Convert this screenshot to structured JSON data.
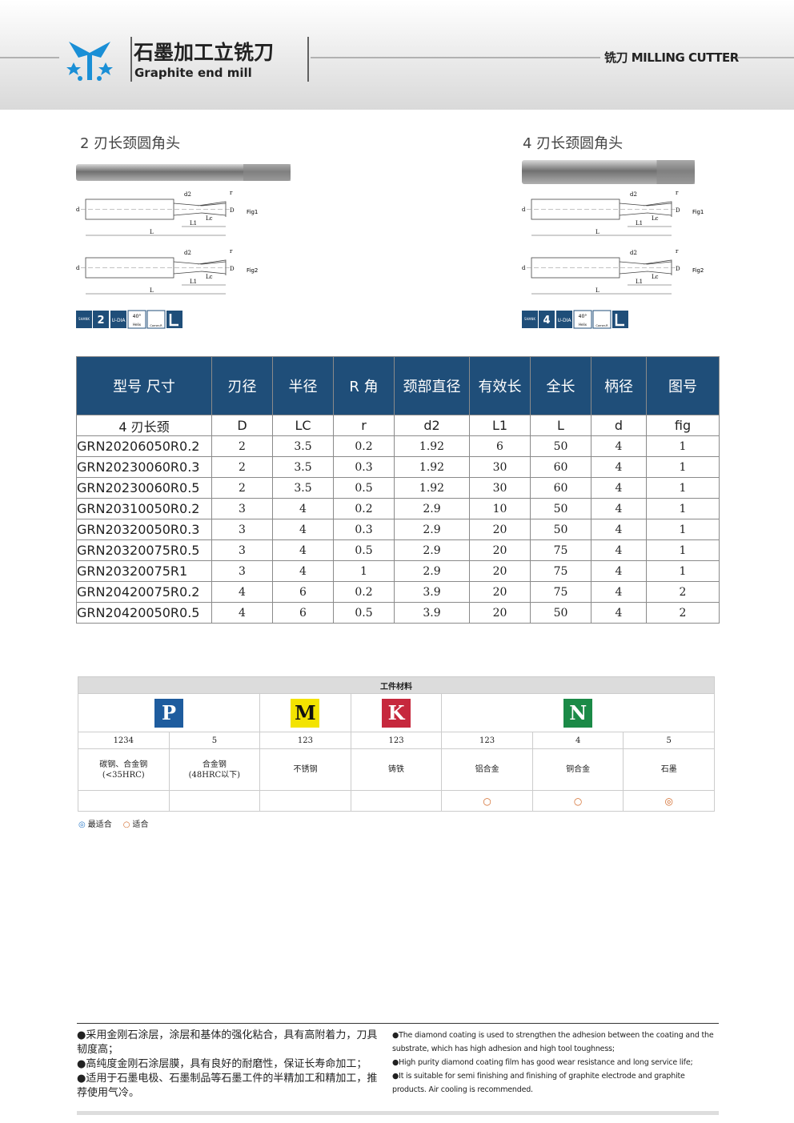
{
  "header": {
    "title_cn": "石墨加工立铣刀",
    "title_en": "Graphite end mill",
    "section": "铣刀 MILLING CUTTER"
  },
  "products": [
    {
      "title": "2 刃长颈圆角头",
      "flutes": "2",
      "figs": [
        "Fig1",
        "Fig2"
      ],
      "dims": [
        "d2",
        "d",
        "Lc",
        "L1",
        "L",
        "r",
        "D"
      ],
      "icons": [
        "SHANK",
        "U-DIA",
        "40°",
        "Helix",
        "Corner-R"
      ]
    },
    {
      "title": "4 刃长颈圆角头",
      "flutes": "4",
      "figs": [
        "Fig1",
        "Fig2"
      ],
      "dims": [
        "d2",
        "d",
        "Lc",
        "L1",
        "L",
        "r",
        "D"
      ],
      "icons": [
        "SHANK",
        "U-DIA",
        "40°",
        "Helix",
        "Corner-R"
      ]
    }
  ],
  "table": {
    "header": [
      "型号  尺寸",
      "刃径",
      "半径",
      "R 角",
      "颈部直径",
      "有效长",
      "全长",
      "柄径",
      "图号"
    ],
    "subheader": [
      "4 刃长颈",
      "D",
      "LC",
      "r",
      "d2",
      "L1",
      "L",
      "d",
      "fig"
    ],
    "rows": [
      [
        "GRN20206050R0.2",
        "2",
        "3.5",
        "0.2",
        "1.92",
        "6",
        "50",
        "4",
        "1"
      ],
      [
        "GRN20230060R0.3",
        "2",
        "3.5",
        "0.3",
        "1.92",
        "30",
        "60",
        "4",
        "1"
      ],
      [
        "GRN20230060R0.5",
        "2",
        "3.5",
        "0.5",
        "1.92",
        "30",
        "60",
        "4",
        "1"
      ],
      [
        "GRN20310050R0.2",
        "3",
        "4",
        "0.2",
        "2.9",
        "10",
        "50",
        "4",
        "1"
      ],
      [
        "GRN20320050R0.3",
        "3",
        "4",
        "0.3",
        "2.9",
        "20",
        "50",
        "4",
        "1"
      ],
      [
        "GRN20320075R0.5",
        "3",
        "4",
        "0.5",
        "2.9",
        "20",
        "75",
        "4",
        "1"
      ],
      [
        "GRN20320075R1",
        "3",
        "4",
        "1",
        "2.9",
        "20",
        "75",
        "4",
        "1"
      ],
      [
        "GRN20420075R0.2",
        "4",
        "6",
        "0.2",
        "3.9",
        "20",
        "75",
        "4",
        "2"
      ],
      [
        "GRN20420050R0.5",
        "4",
        "6",
        "0.5",
        "3.9",
        "20",
        "50",
        "4",
        "2"
      ]
    ]
  },
  "materials": {
    "title": "工件材料",
    "groups": [
      {
        "letter": "P",
        "color": "#1e5c9e",
        "text_color": "#ffffff",
        "span": 2
      },
      {
        "letter": "M",
        "color": "#f3e300",
        "text_color": "#111111",
        "span": 1
      },
      {
        "letter": "K",
        "color": "#c6283d",
        "text_color": "#ffffff",
        "span": 1
      },
      {
        "letter": "N",
        "color": "#1b8a47",
        "text_color": "#ffffff",
        "span": 3
      }
    ],
    "codes": [
      "1234",
      "5",
      "123",
      "123",
      "123",
      "4",
      "5"
    ],
    "names": [
      [
        "碳钢、合金钢",
        "(<35HRC)"
      ],
      [
        "合金钢",
        "(48HRC以下)"
      ],
      [
        "不锈钢"
      ],
      [
        "铸铁"
      ],
      [
        "铝合金"
      ],
      [
        "铜合金"
      ],
      [
        "石墨"
      ]
    ],
    "suitability": [
      "",
      "",
      "",
      "",
      "○",
      "○",
      "◎"
    ],
    "legend": [
      {
        "symbol": "◎",
        "text": "最适合"
      },
      {
        "symbol": "○",
        "text": "适合"
      }
    ]
  },
  "notes": {
    "cn": [
      "●采用金刚石涂层，涂层和基体的强化粘合，具有高附着力，刀具韧度高；",
      "●高纯度金刚石涂层膜，具有良好的耐磨性，保证长寿命加工；",
      "●适用于石墨电极、石墨制品等石墨工件的半精加工和精加工，推荐使用气冷。"
    ],
    "en": [
      "●The diamond coating is used to strengthen the adhesion between the coating and the substrate, which has high adhesion and high tool toughness;",
      "●High purity diamond coating film has good wear resistance and long service life;",
      "●It is suitable for semi finishing and finishing of graphite electrode and graphite products. Air cooling is recommended."
    ]
  }
}
